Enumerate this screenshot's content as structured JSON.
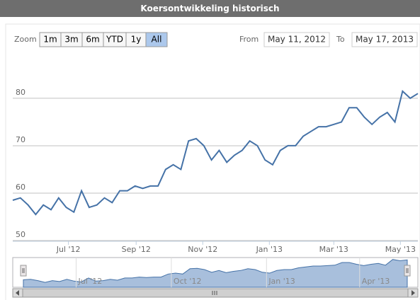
{
  "header": {
    "title": "Koersontwikkeling historisch"
  },
  "range_selector": {
    "zoom_label": "Zoom",
    "buttons": [
      "1m",
      "3m",
      "6m",
      "YTD",
      "1y",
      "All"
    ],
    "selected": 5,
    "from_label": "From",
    "from": "May 11, 2012",
    "to_label": "To",
    "to": "May 17, 2013"
  },
  "chart_data": {
    "type": "line",
    "color": "#4572a7",
    "grid": true,
    "x": [
      "2012-05-11",
      "2012-05-18",
      "2012-05-25",
      "2012-06-01",
      "2012-06-08",
      "2012-06-15",
      "2012-06-22",
      "2012-06-29",
      "2012-07-06",
      "2012-07-13",
      "2012-07-20",
      "2012-07-27",
      "2012-08-03",
      "2012-08-10",
      "2012-08-17",
      "2012-08-24",
      "2012-08-31",
      "2012-09-07",
      "2012-09-14",
      "2012-09-21",
      "2012-09-28",
      "2012-10-05",
      "2012-10-12",
      "2012-10-19",
      "2012-10-26",
      "2012-11-02",
      "2012-11-09",
      "2012-11-16",
      "2012-11-23",
      "2012-11-30",
      "2012-12-07",
      "2012-12-14",
      "2012-12-21",
      "2012-12-28",
      "2013-01-04",
      "2013-01-11",
      "2013-01-18",
      "2013-01-25",
      "2013-02-01",
      "2013-02-08",
      "2013-02-15",
      "2013-02-22",
      "2013-03-01",
      "2013-03-08",
      "2013-03-15",
      "2013-03-22",
      "2013-03-29",
      "2013-04-05",
      "2013-04-12",
      "2013-04-19",
      "2013-04-26",
      "2013-05-03",
      "2013-05-10",
      "2013-05-17"
    ],
    "values": [
      58.5,
      59,
      57.5,
      55.5,
      57.5,
      56.5,
      59,
      57,
      56,
      60.5,
      57,
      57.5,
      59,
      58,
      60.5,
      60.5,
      61.5,
      61,
      61.5,
      61.5,
      65,
      66,
      65,
      71,
      71.5,
      70,
      67,
      69,
      66.5,
      68,
      69,
      71,
      70,
      67,
      66,
      69,
      70,
      70,
      72,
      73,
      74,
      74,
      74.5,
      75,
      78,
      78,
      76,
      74.5,
      76,
      77,
      75,
      81.5,
      80,
      81
    ],
    "xlim": [
      "2012-05-11",
      "2013-05-17"
    ],
    "xticks": [
      {
        "value": "2012-07-01",
        "label": "Jul '12"
      },
      {
        "value": "2012-09-01",
        "label": "Sep '12"
      },
      {
        "value": "2012-11-01",
        "label": "Nov '12"
      },
      {
        "value": "2013-01-01",
        "label": "Jan '13"
      },
      {
        "value": "2013-03-01",
        "label": "Mar '13"
      },
      {
        "value": "2013-05-01",
        "label": "May '13"
      }
    ],
    "ylim": [
      50,
      87
    ],
    "yticks": [
      50,
      60,
      70,
      80
    ],
    "navigator_ticks": [
      {
        "value": "2012-07-01",
        "label": "Jul '12"
      },
      {
        "value": "2012-10-01",
        "label": "Oct '12"
      },
      {
        "value": "2013-01-01",
        "label": "Jan '13"
      },
      {
        "value": "2013-04-01",
        "label": "Apr '13"
      }
    ]
  }
}
